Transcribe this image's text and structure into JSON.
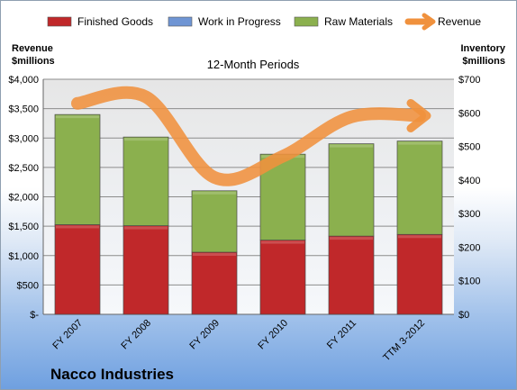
{
  "chart_data": {
    "type": "bar",
    "stacked": true,
    "title": "",
    "subtitle": "12-Month Periods",
    "categories": [
      "FY 2007",
      "FY 2008",
      "FY 2009",
      "FY 2010",
      "FY 2011",
      "TTM 3-2012"
    ],
    "y_left": {
      "label_line1": "Revenue",
      "label_line2": "$millions",
      "range": [
        0,
        4000
      ],
      "ticks": [
        "$-",
        "$500",
        "$1,000",
        "$1,500",
        "$2,000",
        "$2,500",
        "$3,000",
        "$3,500",
        "$4,000"
      ]
    },
    "y_right": {
      "label_line1": "Inventory",
      "label_line2": "$millions",
      "range": [
        0,
        700
      ],
      "ticks": [
        "$0",
        "$100",
        "$200",
        "$300",
        "$400",
        "$500",
        "$600",
        "$700"
      ]
    },
    "series": [
      {
        "name": "Finished Goods",
        "axis": "right",
        "color": "#c0282a",
        "values": [
          267,
          264,
          185,
          221,
          233,
          238
        ]
      },
      {
        "name": "Work in Progress",
        "axis": "right",
        "color": "#6f95d4",
        "values": [
          0,
          0,
          0,
          0,
          0,
          0
        ]
      },
      {
        "name": "Raw Materials",
        "axis": "right",
        "color": "#8bb04e",
        "values": [
          328,
          264,
          183,
          256,
          275,
          278
        ]
      },
      {
        "name": "Revenue",
        "axis": "left",
        "type": "line",
        "color": "#f0913d",
        "values": [
          3590,
          3700,
          2330,
          2690,
          3360,
          3380
        ]
      }
    ],
    "grid": true,
    "legend_position": "top"
  },
  "company": "Nacco Industries"
}
